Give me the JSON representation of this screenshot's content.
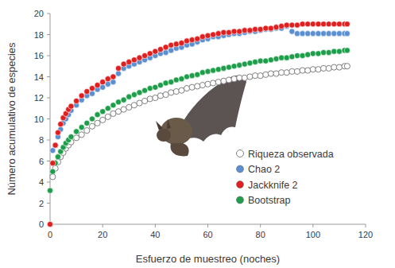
{
  "chart_data": {
    "type": "scatter",
    "x_label": "Esfuerzo de muestreo (noches)",
    "y_label": "Número acumulativo de especies",
    "x": [
      0,
      1,
      2,
      3,
      4,
      5,
      6,
      7,
      8,
      10,
      12,
      14,
      16,
      18,
      20,
      22,
      24,
      26,
      28,
      30,
      32,
      34,
      36,
      38,
      40,
      42,
      44,
      46,
      48,
      50,
      52,
      54,
      56,
      58,
      60,
      62,
      64,
      66,
      68,
      70,
      72,
      74,
      76,
      78,
      80,
      82,
      84,
      86,
      88,
      90,
      92,
      94,
      96,
      98,
      100,
      102,
      104,
      106,
      108,
      110,
      112,
      113
    ],
    "xlim": [
      0,
      120
    ],
    "xticks": [
      0,
      20,
      40,
      60,
      80,
      100,
      120
    ],
    "ylim": [
      0,
      20
    ],
    "yticks": [
      0,
      2,
      4,
      6,
      8,
      10,
      12,
      14,
      16,
      18,
      20
    ],
    "grid": false,
    "legend": "lower right",
    "series": [
      {
        "name": "Riqueza observada",
        "color": "#808080",
        "marker": "circle-open",
        "values": [
          null,
          4.5,
          5.3,
          5.9,
          6.4,
          6.8,
          7.2,
          7.5,
          7.8,
          8.2,
          8.5,
          8.9,
          9.3,
          9.6,
          9.9,
          10.2,
          10.5,
          10.7,
          10.9,
          11.1,
          11.3,
          11.5,
          11.7,
          11.9,
          12.0,
          12.2,
          12.3,
          12.5,
          12.6,
          12.7,
          12.9,
          13.0,
          13.1,
          13.2,
          13.3,
          13.4,
          13.5,
          13.6,
          13.7,
          13.8,
          13.9,
          13.9,
          14.0,
          14.1,
          14.1,
          14.2,
          14.3,
          14.3,
          14.4,
          14.4,
          14.5,
          14.5,
          14.6,
          14.6,
          14.7,
          14.7,
          14.8,
          14.8,
          14.9,
          14.9,
          15.0,
          15.0
        ]
      },
      {
        "name": "Chao 2",
        "color": "#5b8fd0",
        "marker": "circle",
        "values": [
          null,
          7.0,
          7.5,
          8.3,
          9.0,
          9.6,
          10.0,
          10.4,
          10.8,
          11.3,
          11.8,
          12.2,
          12.4,
          12.8,
          13.0,
          13.3,
          13.5,
          14.3,
          14.8,
          15.0,
          15.2,
          15.4,
          15.6,
          15.8,
          16.0,
          16.2,
          16.3,
          16.5,
          16.7,
          16.8,
          17.0,
          17.1,
          17.3,
          17.5,
          17.6,
          17.8,
          17.8,
          17.9,
          18.0,
          18.1,
          18.1,
          18.2,
          18.3,
          18.3,
          18.4,
          18.5,
          18.5,
          18.6,
          18.6,
          18.8,
          18.3,
          18.1,
          18.1,
          18.1,
          18.1,
          18.1,
          18.1,
          18.1,
          18.1,
          18.1,
          18.1,
          18.1
        ]
      },
      {
        "name": "Jackknife 2",
        "color": "#e02020",
        "marker": "circle",
        "values": [
          0,
          5.8,
          7.5,
          8.7,
          9.5,
          10.1,
          10.5,
          10.9,
          11.2,
          11.7,
          12.2,
          12.6,
          12.9,
          13.2,
          13.5,
          13.8,
          14.0,
          14.8,
          15.2,
          15.4,
          15.6,
          15.8,
          16.0,
          16.2,
          16.4,
          16.6,
          16.8,
          17.0,
          17.1,
          17.2,
          17.4,
          17.5,
          17.6,
          17.8,
          17.9,
          18.0,
          18.1,
          18.2,
          18.2,
          18.3,
          18.3,
          18.4,
          18.4,
          18.5,
          18.5,
          18.6,
          18.6,
          18.7,
          18.8,
          18.9,
          18.9,
          18.9,
          19.0,
          19.0,
          19.0,
          19.0,
          19.0,
          19.0,
          19.0,
          19.0,
          19.0,
          19.0
        ]
      },
      {
        "name": "Bootstrap",
        "color": "#1e9e4a",
        "marker": "circle",
        "values": [
          3.2,
          5.0,
          5.8,
          6.4,
          6.9,
          7.3,
          7.7,
          8.0,
          8.3,
          8.8,
          9.2,
          9.6,
          10.0,
          10.4,
          10.7,
          11.0,
          11.3,
          11.6,
          11.8,
          12.1,
          12.3,
          12.5,
          12.7,
          12.9,
          13.0,
          13.2,
          13.4,
          13.5,
          13.7,
          13.8,
          14.0,
          14.1,
          14.2,
          14.4,
          14.5,
          14.6,
          14.7,
          14.8,
          14.9,
          15.0,
          15.1,
          15.2,
          15.3,
          15.4,
          15.5,
          15.5,
          15.6,
          15.7,
          15.8,
          15.8,
          15.9,
          16.0,
          16.0,
          16.1,
          16.2,
          16.2,
          16.3,
          16.3,
          16.4,
          16.4,
          16.5,
          16.5
        ]
      }
    ]
  }
}
